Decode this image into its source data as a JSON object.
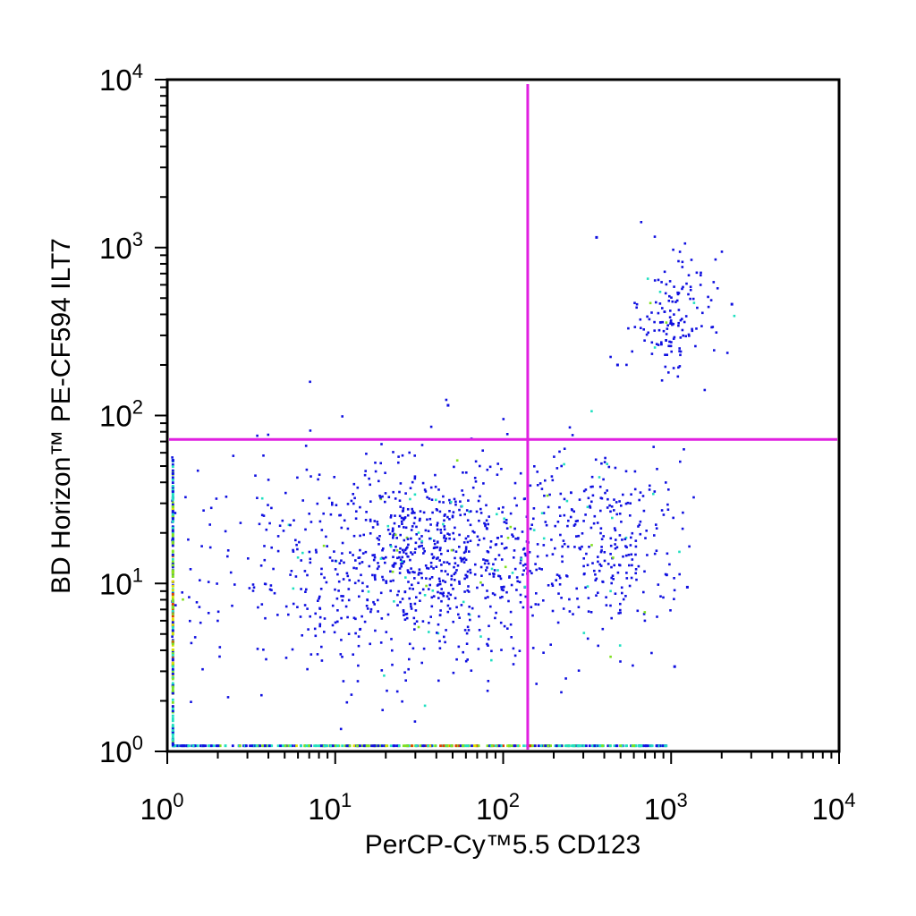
{
  "chart_data": {
    "type": "scatter",
    "subtype": "flow-cytometry pseudocolor dot plot",
    "xlabel": "PerCP-Cy™5.5 CD123",
    "ylabel": "BD Horizon™ PE-CF594 ILT7",
    "x_scale": "log",
    "y_scale": "log",
    "xlim": [
      1,
      10000
    ],
    "ylim": [
      1,
      10000
    ],
    "x_ticks": [
      {
        "base": "10",
        "exp": "0",
        "value": 1
      },
      {
        "base": "10",
        "exp": "1",
        "value": 10
      },
      {
        "base": "10",
        "exp": "2",
        "value": 100
      },
      {
        "base": "10",
        "exp": "3",
        "value": 1000
      },
      {
        "base": "10",
        "exp": "4",
        "value": 10000
      }
    ],
    "y_ticks": [
      {
        "base": "10",
        "exp": "0",
        "value": 1
      },
      {
        "base": "10",
        "exp": "1",
        "value": 10
      },
      {
        "base": "10",
        "exp": "2",
        "value": 100
      },
      {
        "base": "10",
        "exp": "3",
        "value": 1000
      },
      {
        "base": "10",
        "exp": "4",
        "value": 10000
      }
    ],
    "gates": {
      "x": 140,
      "y": 72,
      "color": "#e020e0"
    },
    "grid": false,
    "density_colors": [
      "#1010e0",
      "#20e0c0",
      "#80e020",
      "#e0e000",
      "#e04000"
    ],
    "populations": [
      {
        "x_center": 35,
        "y_center": 14,
        "x_spread": 0.45,
        "y_spread": 0.3,
        "count": 900
      },
      {
        "x_center": 450,
        "y_center": 18,
        "x_spread": 0.22,
        "y_spread": 0.28,
        "count": 260
      },
      {
        "x_center": 1000,
        "y_center": 380,
        "x_spread": 0.12,
        "y_spread": 0.2,
        "count": 150
      },
      {
        "x_center": 5,
        "y_center": 10,
        "x_spread": 0.35,
        "y_spread": 0.35,
        "count": 120
      }
    ],
    "outliers": [
      {
        "x": 360,
        "y": 1150
      },
      {
        "x": 47,
        "y": 115
      },
      {
        "x": 1250,
        "y": 9.5
      },
      {
        "x": 1050,
        "y": 3.2
      },
      {
        "x": 2300,
        "y": 460
      },
      {
        "x": 480,
        "y": 200
      }
    ]
  }
}
